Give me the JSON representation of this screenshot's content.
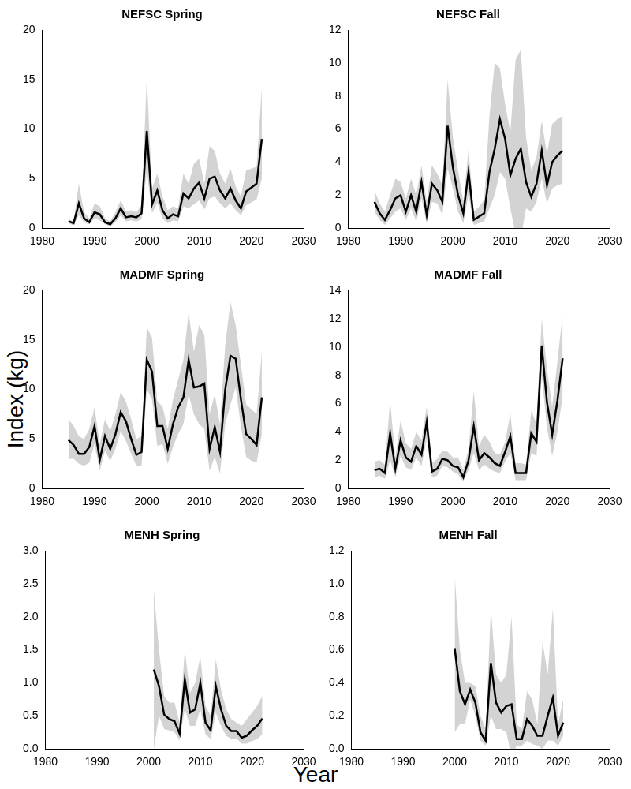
{
  "xlabel": "Year",
  "ylabel": "Index (kg)",
  "chart_data": [
    {
      "type": "line",
      "title": "NEFSC Spring",
      "color": "#000000",
      "grid": false,
      "x": [
        1985,
        1986,
        1987,
        1988,
        1989,
        1990,
        1991,
        1992,
        1993,
        1994,
        1995,
        1996,
        1997,
        1998,
        1999,
        2000,
        2001,
        2002,
        2003,
        2004,
        2005,
        2006,
        2007,
        2008,
        2009,
        2010,
        2011,
        2012,
        2013,
        2014,
        2015,
        2016,
        2017,
        2018,
        2019,
        2020,
        2021,
        2022
      ],
      "values": [
        0.7,
        0.5,
        2.5,
        1.0,
        0.6,
        1.6,
        1.4,
        0.6,
        0.4,
        1.0,
        2.0,
        1.1,
        1.2,
        1.1,
        1.5,
        9.8,
        2.4,
        3.8,
        1.8,
        1.0,
        1.4,
        1.2,
        3.5,
        3.0,
        4.0,
        4.6,
        3.0,
        5.0,
        5.2,
        3.8,
        3.0,
        4.0,
        2.8,
        2.0,
        3.7,
        4.1,
        4.5,
        9.0
      ],
      "upper": [
        0.9,
        0.7,
        4.5,
        1.6,
        1.0,
        2.5,
        2.2,
        1.0,
        0.7,
        1.6,
        2.8,
        1.7,
        1.8,
        1.6,
        2.3,
        15.2,
        4.0,
        5.5,
        3.2,
        1.8,
        2.2,
        2.0,
        5.5,
        4.5,
        6.5,
        7.0,
        4.5,
        8.3,
        7.8,
        5.5,
        4.5,
        6.0,
        4.2,
        3.2,
        5.8,
        6.0,
        6.2,
        14.2
      ],
      "lower": [
        0.5,
        0.3,
        1.3,
        0.6,
        0.4,
        1.0,
        0.8,
        0.4,
        0.2,
        0.6,
        1.3,
        0.7,
        0.8,
        0.7,
        0.9,
        5.8,
        1.5,
        2.5,
        1.0,
        0.5,
        0.8,
        0.7,
        2.2,
        2.0,
        2.4,
        2.8,
        1.9,
        3.0,
        3.2,
        2.5,
        2.0,
        2.5,
        1.8,
        1.3,
        2.3,
        2.6,
        2.9,
        5.0
      ],
      "xlim": [
        1980,
        2030
      ],
      "xticks": [
        1980,
        1990,
        2000,
        2010,
        2020,
        2030
      ],
      "ylim": [
        0,
        20
      ],
      "yticks": [
        0,
        5,
        10,
        15,
        20
      ]
    },
    {
      "type": "line",
      "title": "NEFSC Fall",
      "color": "#000000",
      "grid": false,
      "x": [
        1985,
        1986,
        1987,
        1988,
        1989,
        1990,
        1991,
        1992,
        1993,
        1994,
        1995,
        1996,
        1997,
        1998,
        1999,
        2000,
        2001,
        2002,
        2003,
        2004,
        2005,
        2006,
        2007,
        2008,
        2009,
        2010,
        2011,
        2012,
        2013,
        2014,
        2015,
        2016,
        2017,
        2018,
        2019,
        2020,
        2021
      ],
      "values": [
        1.6,
        0.9,
        0.5,
        1.1,
        1.8,
        2.0,
        1.0,
        2.0,
        1.0,
        2.8,
        0.8,
        2.7,
        2.3,
        1.6,
        6.2,
        3.7,
        2.0,
        0.9,
        3.4,
        0.5,
        0.7,
        0.9,
        3.4,
        4.8,
        6.6,
        5.4,
        3.2,
        4.2,
        4.8,
        2.8,
        1.9,
        2.7,
        4.7,
        2.6,
        4.0,
        4.4,
        4.7
      ],
      "upper": [
        2.3,
        1.5,
        1.0,
        2.0,
        3.0,
        2.8,
        1.8,
        3.0,
        2.0,
        3.8,
        1.6,
        3.8,
        3.3,
        2.6,
        9.0,
        5.5,
        3.5,
        1.6,
        4.8,
        1.0,
        1.3,
        1.7,
        6.8,
        10.0,
        9.7,
        7.5,
        5.8,
        10.2,
        10.8,
        5.5,
        3.5,
        4.3,
        6.5,
        4.5,
        6.3,
        6.6,
        6.8
      ],
      "lower": [
        1.0,
        0.5,
        0.2,
        0.6,
        1.0,
        1.2,
        0.5,
        1.2,
        0.4,
        1.8,
        0.3,
        1.6,
        1.5,
        0.8,
        3.6,
        2.4,
        1.0,
        0.3,
        2.0,
        0.2,
        0.3,
        0.4,
        1.2,
        2.0,
        3.4,
        3.0,
        1.2,
        -0.4,
        -0.6,
        1.2,
        1.0,
        1.6,
        3.0,
        1.5,
        2.4,
        2.6,
        2.7
      ],
      "xlim": [
        1980,
        2030
      ],
      "xticks": [
        1980,
        1990,
        2000,
        2010,
        2020,
        2030
      ],
      "ylim": [
        0,
        12
      ],
      "yticks": [
        0,
        2,
        4,
        6,
        8,
        10,
        12
      ]
    },
    {
      "type": "line",
      "title": "MADMF Spring",
      "color": "#000000",
      "grid": false,
      "x": [
        1985,
        1986,
        1987,
        1988,
        1989,
        1990,
        1991,
        1992,
        1993,
        1994,
        1995,
        1996,
        1997,
        1998,
        1999,
        2000,
        2001,
        2002,
        2003,
        2004,
        2005,
        2006,
        2007,
        2008,
        2009,
        2010,
        2011,
        2012,
        2013,
        2014,
        2015,
        2016,
        2017,
        2018,
        2019,
        2020,
        2021,
        2022
      ],
      "values": [
        4.9,
        4.4,
        3.5,
        3.5,
        4.2,
        6.3,
        2.9,
        5.3,
        4.0,
        5.5,
        7.7,
        6.8,
        5.0,
        3.4,
        3.7,
        13.0,
        11.8,
        6.3,
        6.3,
        4.0,
        6.5,
        8.2,
        9.2,
        13.0,
        10.2,
        10.3,
        10.6,
        4.0,
        6.2,
        3.7,
        10.0,
        13.4,
        13.1,
        9.0,
        5.5,
        5.0,
        4.4,
        9.2
      ],
      "upper": [
        7.0,
        6.3,
        5.3,
        5.0,
        6.0,
        8.2,
        4.5,
        7.0,
        5.8,
        7.5,
        9.7,
        8.8,
        7.0,
        5.0,
        5.3,
        16.3,
        15.2,
        8.8,
        8.3,
        6.0,
        9.0,
        11.0,
        13.0,
        17.8,
        13.8,
        16.5,
        15.5,
        7.5,
        9.5,
        6.5,
        14.5,
        18.8,
        16.5,
        12.5,
        8.5,
        8.0,
        7.5,
        13.8
      ],
      "lower": [
        3.0,
        3.0,
        2.5,
        2.3,
        2.6,
        4.5,
        1.8,
        3.8,
        2.8,
        4.0,
        5.8,
        4.8,
        3.5,
        2.3,
        2.3,
        10.0,
        9.0,
        4.3,
        4.5,
        2.5,
        4.2,
        5.5,
        6.5,
        9.5,
        7.5,
        6.5,
        6.0,
        1.8,
        3.2,
        1.5,
        6.5,
        8.5,
        10.2,
        6.2,
        3.2,
        2.8,
        2.6,
        5.5
      ],
      "xlim": [
        1980,
        2030
      ],
      "xticks": [
        1980,
        1990,
        2000,
        2010,
        2020,
        2030
      ],
      "ylim": [
        0,
        20
      ],
      "yticks": [
        0,
        5,
        10,
        15,
        20
      ]
    },
    {
      "type": "line",
      "title": "MADMF Fall",
      "color": "#000000",
      "grid": false,
      "x": [
        1985,
        1986,
        1987,
        1988,
        1989,
        1990,
        1991,
        1992,
        1993,
        1994,
        1995,
        1996,
        1997,
        1998,
        1999,
        2000,
        2001,
        2002,
        2003,
        2004,
        2005,
        2006,
        2007,
        2008,
        2009,
        2010,
        2011,
        2012,
        2013,
        2014,
        2015,
        2016,
        2017,
        2018,
        2019,
        2020,
        2021
      ],
      "values": [
        1.3,
        1.4,
        1.1,
        3.9,
        1.4,
        3.4,
        2.2,
        1.9,
        3.0,
        2.4,
        4.7,
        1.2,
        1.4,
        2.1,
        2.0,
        1.6,
        1.5,
        0.8,
        2.0,
        4.4,
        2.0,
        2.5,
        2.2,
        1.8,
        1.6,
        2.6,
        3.7,
        1.1,
        1.1,
        1.1,
        3.9,
        3.3,
        10.1,
        6.1,
        3.8,
        6.2,
        9.2
      ],
      "upper": [
        1.9,
        2.0,
        1.7,
        6.2,
        2.2,
        4.8,
        3.2,
        2.8,
        4.0,
        3.4,
        5.8,
        1.8,
        2.1,
        2.7,
        2.6,
        2.2,
        2.2,
        1.3,
        2.8,
        6.9,
        3.0,
        3.8,
        3.3,
        2.5,
        2.4,
        3.3,
        5.3,
        1.8,
        1.8,
        1.7,
        5.5,
        4.6,
        12.0,
        8.5,
        5.8,
        9.0,
        12.3
      ],
      "lower": [
        0.8,
        0.9,
        0.7,
        2.0,
        0.8,
        2.3,
        1.5,
        1.3,
        2.2,
        1.6,
        3.5,
        0.8,
        0.9,
        1.6,
        1.5,
        1.2,
        1.0,
        0.5,
        1.3,
        2.5,
        1.3,
        1.7,
        1.4,
        1.2,
        1.1,
        1.9,
        2.5,
        0.6,
        0.6,
        0.6,
        2.5,
        2.3,
        8.0,
        4.3,
        2.3,
        4.0,
        6.5
      ],
      "xlim": [
        1980,
        2030
      ],
      "xticks": [
        1980,
        1990,
        2000,
        2010,
        2020,
        2030
      ],
      "ylim": [
        0,
        14
      ],
      "yticks": [
        0,
        2,
        4,
        6,
        8,
        10,
        12,
        14
      ]
    },
    {
      "type": "line",
      "title": "MENH Spring",
      "color": "#000000",
      "grid": false,
      "x": [
        2001,
        2002,
        2003,
        2004,
        2005,
        2006,
        2007,
        2008,
        2009,
        2010,
        2011,
        2012,
        2013,
        2014,
        2015,
        2016,
        2017,
        2018,
        2019,
        2020,
        2021,
        2022
      ],
      "values": [
        1.2,
        0.95,
        0.52,
        0.45,
        0.42,
        0.23,
        1.05,
        0.55,
        0.6,
        1.0,
        0.4,
        0.28,
        0.95,
        0.6,
        0.35,
        0.27,
        0.27,
        0.17,
        0.2,
        0.28,
        0.35,
        0.46
      ],
      "upper": [
        2.4,
        1.5,
        0.8,
        0.7,
        0.7,
        0.4,
        1.5,
        0.85,
        1.0,
        1.4,
        0.65,
        0.5,
        1.35,
        0.9,
        0.6,
        0.45,
        0.4,
        0.35,
        0.45,
        0.55,
        0.65,
        0.8
      ],
      "lower": [
        0.0,
        0.5,
        0.3,
        0.28,
        0.25,
        0.13,
        0.6,
        0.35,
        0.35,
        0.6,
        0.22,
        0.15,
        0.55,
        0.35,
        0.2,
        0.15,
        0.16,
        0.08,
        0.08,
        0.12,
        0.15,
        0.22
      ],
      "xlim": [
        1980,
        2030
      ],
      "xticks": [
        1980,
        1990,
        2000,
        2010,
        2020,
        2030
      ],
      "ylim": [
        0,
        3
      ],
      "yticks": [
        {
          "value": 0,
          "label": "0.0"
        },
        0.5,
        {
          "value": 1,
          "label": "1.0"
        },
        1.5,
        {
          "value": 2,
          "label": "2.0"
        },
        2.5,
        {
          "value": 3,
          "label": "3.0"
        }
      ]
    },
    {
      "type": "line",
      "title": "MENH Fall",
      "color": "#000000",
      "grid": false,
      "x": [
        2000,
        2001,
        2002,
        2003,
        2004,
        2005,
        2006,
        2007,
        2008,
        2009,
        2010,
        2011,
        2012,
        2013,
        2014,
        2015,
        2016,
        2017,
        2018,
        2019,
        2020,
        2021
      ],
      "values": [
        0.61,
        0.35,
        0.27,
        0.36,
        0.28,
        0.1,
        0.05,
        0.52,
        0.28,
        0.22,
        0.26,
        0.27,
        0.06,
        0.06,
        0.18,
        0.14,
        0.08,
        0.08,
        0.2,
        0.31,
        0.08,
        0.16
      ],
      "upper": [
        1.05,
        0.6,
        0.4,
        0.4,
        0.38,
        0.2,
        0.12,
        0.85,
        0.45,
        0.4,
        0.45,
        0.8,
        0.15,
        0.12,
        0.35,
        0.3,
        0.15,
        0.65,
        0.45,
        0.85,
        0.15,
        0.3
      ],
      "lower": [
        0.1,
        0.15,
        0.15,
        0.3,
        0.2,
        0.05,
        0.02,
        0.2,
        0.12,
        0.12,
        0.1,
        -0.05,
        0.02,
        0.02,
        0.05,
        0.03,
        0.02,
        0.0,
        0.05,
        0.05,
        0.02,
        0.08
      ],
      "xlim": [
        1980,
        2030
      ],
      "xticks": [
        1980,
        1990,
        2000,
        2010,
        2020,
        2030
      ],
      "ylim": [
        0,
        1.2
      ],
      "yticks": [
        {
          "value": 0,
          "label": "0.0"
        },
        0.2,
        0.4,
        0.6,
        0.8,
        {
          "value": 1,
          "label": "1.0"
        },
        1.2
      ]
    }
  ]
}
